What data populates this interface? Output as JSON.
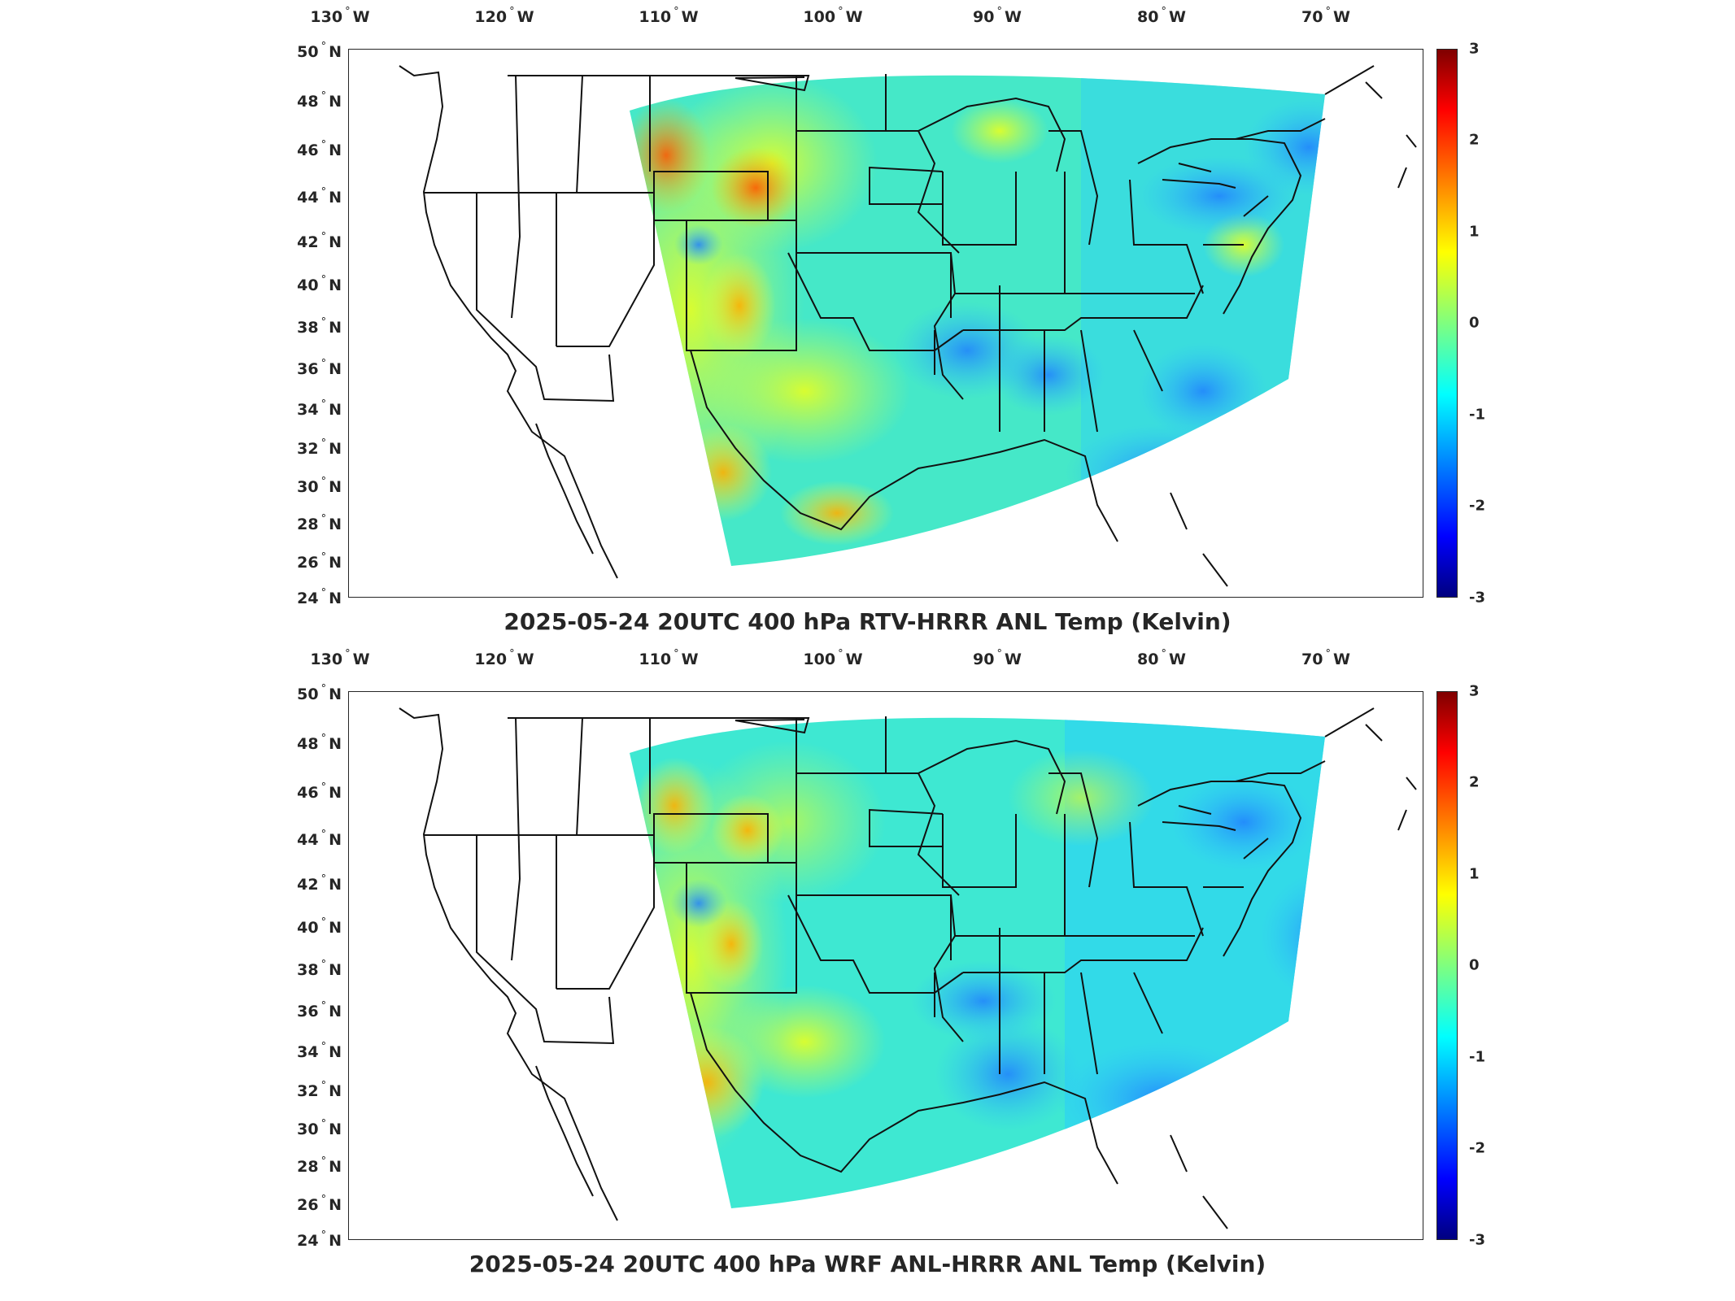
{
  "colors": {
    "ocean": "#ffffff",
    "borders": "#111111",
    "colormap": [
      "#00007f",
      "#0000ff",
      "#007fff",
      "#00ffff",
      "#7fff7f",
      "#ffff00",
      "#ff7f00",
      "#ff0000",
      "#7f0000"
    ]
  },
  "axes": {
    "lon_ticks": [
      "130",
      "120",
      "110",
      "100",
      "90",
      "80",
      "70"
    ],
    "lon_suffix": "W",
    "lat_ticks": [
      "50",
      "48",
      "46",
      "44",
      "42",
      "40",
      "38",
      "36",
      "34",
      "32",
      "30",
      "28",
      "26",
      "24"
    ],
    "lat_suffix": "N",
    "degree_symbol": "°"
  },
  "panels": [
    {
      "title": "2025-05-24 20UTC 400 hPa RTV-HRRR ANL Temp (Kelvin)",
      "colorbar_ticks": [
        "3",
        "2",
        "1",
        "0",
        "-1",
        "-2",
        "-3"
      ],
      "color_range": [
        -3,
        3
      ]
    },
    {
      "title": "2025-05-24 20UTC 400 hPa WRF ANL-HRRR ANL Temp (Kelvin)",
      "colorbar_ticks": [
        "3",
        "2",
        "1",
        "0",
        "-1",
        "-2",
        "-3"
      ],
      "color_range": [
        -3,
        3
      ]
    }
  ]
}
